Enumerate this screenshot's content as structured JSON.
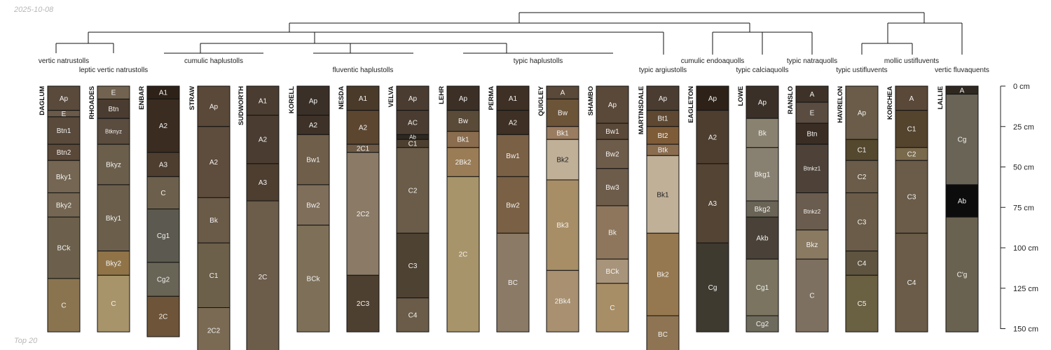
{
  "date": "2025-10-08",
  "footer": "Top 20",
  "depth_axis": {
    "unit": "cm",
    "ticks": [
      "0 cm",
      "25 cm",
      "50 cm",
      "75 cm",
      "100 cm",
      "125 cm",
      "150 cm"
    ],
    "tick_values": [
      0,
      25,
      50,
      75,
      100,
      125,
      150
    ]
  },
  "groups": [
    {
      "label": "vertic natrustolls"
    },
    {
      "label": "leptic vertic natrustolls"
    },
    {
      "label": "cumulic haplustolls"
    },
    {
      "label": "fluventic haplustolls"
    },
    {
      "label": "typic haplustolls"
    },
    {
      "label": "typic argiustolls"
    },
    {
      "label": "cumulic endoaquolls"
    },
    {
      "label": "typic calciaquolls"
    },
    {
      "label": "typic natraquolls"
    },
    {
      "label": "typic ustifluvents"
    },
    {
      "label": "mollic ustifluvents"
    },
    {
      "label": "vertic fluvaquents"
    }
  ],
  "profiles": [
    {
      "name": "DAGLUM",
      "horizons": [
        {
          "label": "Ap",
          "top": 0,
          "bottom": 15,
          "color": "#5a4a3c"
        },
        {
          "label": "E",
          "top": 15,
          "bottom": 19,
          "color": "#6a5a4a"
        },
        {
          "label": "Btn1",
          "top": 19,
          "bottom": 36,
          "color": "#594a3c"
        },
        {
          "label": "Btn2",
          "top": 36,
          "bottom": 46,
          "color": "#5a4838"
        },
        {
          "label": "Bky1",
          "top": 46,
          "bottom": 66,
          "color": "#746652"
        },
        {
          "label": "Bky2",
          "top": 66,
          "bottom": 81,
          "color": "#746652"
        },
        {
          "label": "BCk",
          "top": 81,
          "bottom": 119,
          "color": "#6c604c"
        },
        {
          "label": "C",
          "top": 119,
          "bottom": 152,
          "color": "#8a7450"
        }
      ]
    },
    {
      "name": "RHOADES",
      "horizons": [
        {
          "label": "E",
          "top": 0,
          "bottom": 8,
          "color": "#726350"
        },
        {
          "label": "Btn",
          "top": 8,
          "bottom": 20,
          "color": "#4a3c30"
        },
        {
          "label": "Btknyz",
          "top": 20,
          "bottom": 36,
          "color": "#5a4c3e"
        },
        {
          "label": "Bkyz",
          "top": 36,
          "bottom": 61,
          "color": "#6b5f4c"
        },
        {
          "label": "Bky1",
          "top": 61,
          "bottom": 102,
          "color": "#6b5f4c"
        },
        {
          "label": "Bky2",
          "top": 102,
          "bottom": 117,
          "color": "#907448"
        },
        {
          "label": "C",
          "top": 117,
          "bottom": 152,
          "color": "#a8946a"
        }
      ]
    },
    {
      "name": "ENBAR",
      "horizons": [
        {
          "label": "A1",
          "top": 0,
          "bottom": 8,
          "color": "#2e2218"
        },
        {
          "label": "A2",
          "top": 8,
          "bottom": 41,
          "color": "#3a2c20"
        },
        {
          "label": "A3",
          "top": 41,
          "bottom": 56,
          "color": "#4e3e30"
        },
        {
          "label": "C",
          "top": 56,
          "bottom": 76,
          "color": "#6c604c"
        },
        {
          "label": "Cg1",
          "top": 76,
          "bottom": 109,
          "color": "#5c5a50"
        },
        {
          "label": "Cg2",
          "top": 109,
          "bottom": 130,
          "color": "#686456"
        },
        {
          "label": "2C",
          "top": 130,
          "bottom": 155,
          "color": "#6e5438"
        }
      ]
    },
    {
      "name": "STRAW",
      "horizons": [
        {
          "label": "Ap",
          "top": 0,
          "bottom": 25,
          "color": "#5a4838"
        },
        {
          "label": "A2",
          "top": 25,
          "bottom": 69,
          "color": "#5e4c3c"
        },
        {
          "label": "Bk",
          "top": 69,
          "bottom": 97,
          "color": "#6a5a48"
        },
        {
          "label": "C1",
          "top": 97,
          "bottom": 137,
          "color": "#6c604a"
        },
        {
          "label": "2C2",
          "top": 137,
          "bottom": 165,
          "color": "#7a6a54"
        }
      ]
    },
    {
      "name": "SUDWORTH",
      "horizons": [
        {
          "label": "A1",
          "top": 0,
          "bottom": 18,
          "color": "#4a3c30"
        },
        {
          "label": "A2",
          "top": 18,
          "bottom": 48,
          "color": "#4a3c30"
        },
        {
          "label": "A3",
          "top": 48,
          "bottom": 71,
          "color": "#4e3e30"
        },
        {
          "label": "2C",
          "top": 71,
          "bottom": 165,
          "color": "#6c5c4a"
        }
      ]
    },
    {
      "name": "KORELL",
      "horizons": [
        {
          "label": "Ap",
          "top": 0,
          "bottom": 18,
          "color": "#3a3028"
        },
        {
          "label": "A2",
          "top": 18,
          "bottom": 30,
          "color": "#3e3228"
        },
        {
          "label": "Bw1",
          "top": 30,
          "bottom": 61,
          "color": "#6e5e4a"
        },
        {
          "label": "Bw2",
          "top": 61,
          "bottom": 86,
          "color": "#7e6e5a"
        },
        {
          "label": "BCk",
          "top": 86,
          "bottom": 152,
          "color": "#7e7058"
        }
      ]
    },
    {
      "name": "NESDA",
      "horizons": [
        {
          "label": "A1",
          "top": 0,
          "bottom": 15,
          "color": "#4a3a2a"
        },
        {
          "label": "A2",
          "top": 15,
          "bottom": 36,
          "color": "#5c4630"
        },
        {
          "label": "2C1",
          "top": 36,
          "bottom": 41,
          "color": "#6e5a44"
        },
        {
          "label": "2C2",
          "top": 41,
          "bottom": 117,
          "color": "#8a7a66"
        },
        {
          "label": "2C3",
          "top": 117,
          "bottom": 152,
          "color": "#4e4030"
        }
      ]
    },
    {
      "name": "VELVA",
      "horizons": [
        {
          "label": "Ap",
          "top": 0,
          "bottom": 15,
          "color": "#4a3c30"
        },
        {
          "label": "AC",
          "top": 15,
          "bottom": 30,
          "color": "#4a3c30"
        },
        {
          "label": "Ab",
          "top": 30,
          "bottom": 33,
          "color": "#2e2820"
        },
        {
          "label": "C1",
          "top": 33,
          "bottom": 38,
          "color": "#4e4030"
        },
        {
          "label": "C2",
          "top": 38,
          "bottom": 91,
          "color": "#6a5c48"
        },
        {
          "label": "C3",
          "top": 91,
          "bottom": 131,
          "color": "#4e4232"
        },
        {
          "label": "C4",
          "top": 131,
          "bottom": 152,
          "color": "#6a5c48"
        }
      ]
    },
    {
      "name": "LEHR",
      "horizons": [
        {
          "label": "Ap",
          "top": 0,
          "bottom": 15,
          "color": "#3c3026"
        },
        {
          "label": "Bw",
          "top": 15,
          "bottom": 28,
          "color": "#5a4a38"
        },
        {
          "label": "Bk1",
          "top": 28,
          "bottom": 38,
          "color": "#8a6c4e"
        },
        {
          "label": "2Bk2",
          "top": 38,
          "bottom": 56,
          "color": "#9a7c56"
        },
        {
          "label": "2C",
          "top": 56,
          "bottom": 152,
          "color": "#a8946a"
        }
      ]
    },
    {
      "name": "PERMA",
      "horizons": [
        {
          "label": "A1",
          "top": 0,
          "bottom": 15,
          "color": "#3e3024"
        },
        {
          "label": "A2",
          "top": 15,
          "bottom": 30,
          "color": "#3e3024"
        },
        {
          "label": "Bw1",
          "top": 30,
          "bottom": 56,
          "color": "#7a6044"
        },
        {
          "label": "Bw2",
          "top": 56,
          "bottom": 91,
          "color": "#7a6044"
        },
        {
          "label": "BC",
          "top": 91,
          "bottom": 152,
          "color": "#8a7a66"
        }
      ]
    },
    {
      "name": "QUIGLEY",
      "horizons": [
        {
          "label": "A",
          "top": 0,
          "bottom": 8,
          "color": "#5a4838"
        },
        {
          "label": "Bw",
          "top": 8,
          "bottom": 25,
          "color": "#6c5438"
        },
        {
          "label": "Bk1",
          "top": 25,
          "bottom": 33,
          "color": "#9a7c60"
        },
        {
          "label": "Bk2",
          "top": 33,
          "bottom": 58,
          "color": "#c0b098"
        },
        {
          "label": "Bk3",
          "top": 58,
          "bottom": 114,
          "color": "#a88e66"
        },
        {
          "label": "2Bk4",
          "top": 114,
          "bottom": 152,
          "color": "#a89070"
        }
      ]
    },
    {
      "name": "SHAMBO",
      "horizons": [
        {
          "label": "Ap",
          "top": 0,
          "bottom": 23,
          "color": "#5a4838"
        },
        {
          "label": "Bw1",
          "top": 23,
          "bottom": 33,
          "color": "#5a4838"
        },
        {
          "label": "Bw2",
          "top": 33,
          "bottom": 51,
          "color": "#6e5c4a"
        },
        {
          "label": "Bw3",
          "top": 51,
          "bottom": 74,
          "color": "#6e5c4a"
        },
        {
          "label": "Bk",
          "top": 74,
          "bottom": 107,
          "color": "#8e765c"
        },
        {
          "label": "BCk",
          "top": 107,
          "bottom": 122,
          "color": "#a8947a"
        },
        {
          "label": "C",
          "top": 122,
          "bottom": 152,
          "color": "#a88e66"
        }
      ]
    },
    {
      "name": "MARTINSDALE",
      "horizons": [
        {
          "label": "Ap",
          "top": 0,
          "bottom": 15,
          "color": "#4a3c30"
        },
        {
          "label": "Bt1",
          "top": 15,
          "bottom": 25,
          "color": "#5e4832"
        },
        {
          "label": "Bt2",
          "top": 25,
          "bottom": 36,
          "color": "#7e5c38"
        },
        {
          "label": "Btk",
          "top": 36,
          "bottom": 43,
          "color": "#8a6c4e"
        },
        {
          "label": "Bk1",
          "top": 43,
          "bottom": 91,
          "color": "#c0b098"
        },
        {
          "label": "Bk2",
          "top": 91,
          "bottom": 142,
          "color": "#967850"
        },
        {
          "label": "BC",
          "top": 142,
          "bottom": 165,
          "color": "#8e7452"
        }
      ]
    },
    {
      "name": "EAGLETON",
      "horizons": [
        {
          "label": "Ap",
          "top": 0,
          "bottom": 15,
          "color": "#2e2218"
        },
        {
          "label": "A2",
          "top": 15,
          "bottom": 48,
          "color": "#4e3e30"
        },
        {
          "label": "A3",
          "top": 48,
          "bottom": 97,
          "color": "#544434"
        },
        {
          "label": "Cg",
          "top": 97,
          "bottom": 152,
          "color": "#3e3a30"
        }
      ]
    },
    {
      "name": "LOWE",
      "horizons": [
        {
          "label": "Ap",
          "top": 0,
          "bottom": 20,
          "color": "#3a3028"
        },
        {
          "label": "Bk",
          "top": 20,
          "bottom": 38,
          "color": "#8a8270"
        },
        {
          "label": "Bkg1",
          "top": 38,
          "bottom": 71,
          "color": "#888070"
        },
        {
          "label": "Bkg2",
          "top": 71,
          "bottom": 81,
          "color": "#6a6456"
        },
        {
          "label": "Akb",
          "top": 81,
          "bottom": 107,
          "color": "#4a4238"
        },
        {
          "label": "Cg1",
          "top": 107,
          "bottom": 142,
          "color": "#7a7460"
        },
        {
          "label": "Cg2",
          "top": 142,
          "bottom": 152,
          "color": "#6e6a5c"
        }
      ]
    },
    {
      "name": "RANSLO",
      "horizons": [
        {
          "label": "A",
          "top": 0,
          "bottom": 10,
          "color": "#3e3228"
        },
        {
          "label": "E",
          "top": 10,
          "bottom": 23,
          "color": "#5a4c40"
        },
        {
          "label": "Btn",
          "top": 23,
          "bottom": 36,
          "color": "#3a2e24"
        },
        {
          "label": "Btnkz1",
          "top": 36,
          "bottom": 66,
          "color": "#4e4238"
        },
        {
          "label": "Btnkz2",
          "top": 66,
          "bottom": 89,
          "color": "#6a5c4e"
        },
        {
          "label": "Bkz",
          "top": 89,
          "bottom": 107,
          "color": "#8a7a62"
        },
        {
          "label": "C",
          "top": 107,
          "bottom": 152,
          "color": "#7e7060"
        }
      ]
    },
    {
      "name": "HAVRELON",
      "horizons": [
        {
          "label": "Ap",
          "top": 0,
          "bottom": 33,
          "color": "#6a5c48"
        },
        {
          "label": "C1",
          "top": 33,
          "bottom": 46,
          "color": "#54482e"
        },
        {
          "label": "C2",
          "top": 46,
          "bottom": 66,
          "color": "#6a5c48"
        },
        {
          "label": "C3",
          "top": 66,
          "bottom": 102,
          "color": "#6a5c48"
        },
        {
          "label": "C4",
          "top": 102,
          "bottom": 117,
          "color": "#5e5440"
        },
        {
          "label": "C5",
          "top": 117,
          "bottom": 152,
          "color": "#6a6042"
        }
      ]
    },
    {
      "name": "KORCHEA",
      "horizons": [
        {
          "label": "A",
          "top": 0,
          "bottom": 15,
          "color": "#5a4838"
        },
        {
          "label": "C1",
          "top": 15,
          "bottom": 38,
          "color": "#54442e"
        },
        {
          "label": "C2",
          "top": 38,
          "bottom": 46,
          "color": "#7a6a4c"
        },
        {
          "label": "C3",
          "top": 46,
          "bottom": 91,
          "color": "#6a5c48"
        },
        {
          "label": "C4",
          "top": 91,
          "bottom": 152,
          "color": "#6a5c48"
        }
      ]
    },
    {
      "name": "LALLIE",
      "horizons": [
        {
          "label": "A",
          "top": 0,
          "bottom": 5,
          "color": "#2e2820"
        },
        {
          "label": "Cg",
          "top": 5,
          "bottom": 61,
          "color": "#6a6456"
        },
        {
          "label": "Ab",
          "top": 61,
          "bottom": 81,
          "color": "#0c0c0c"
        },
        {
          "label": "C'g",
          "top": 81,
          "bottom": 152,
          "color": "#6a6250"
        }
      ]
    }
  ]
}
